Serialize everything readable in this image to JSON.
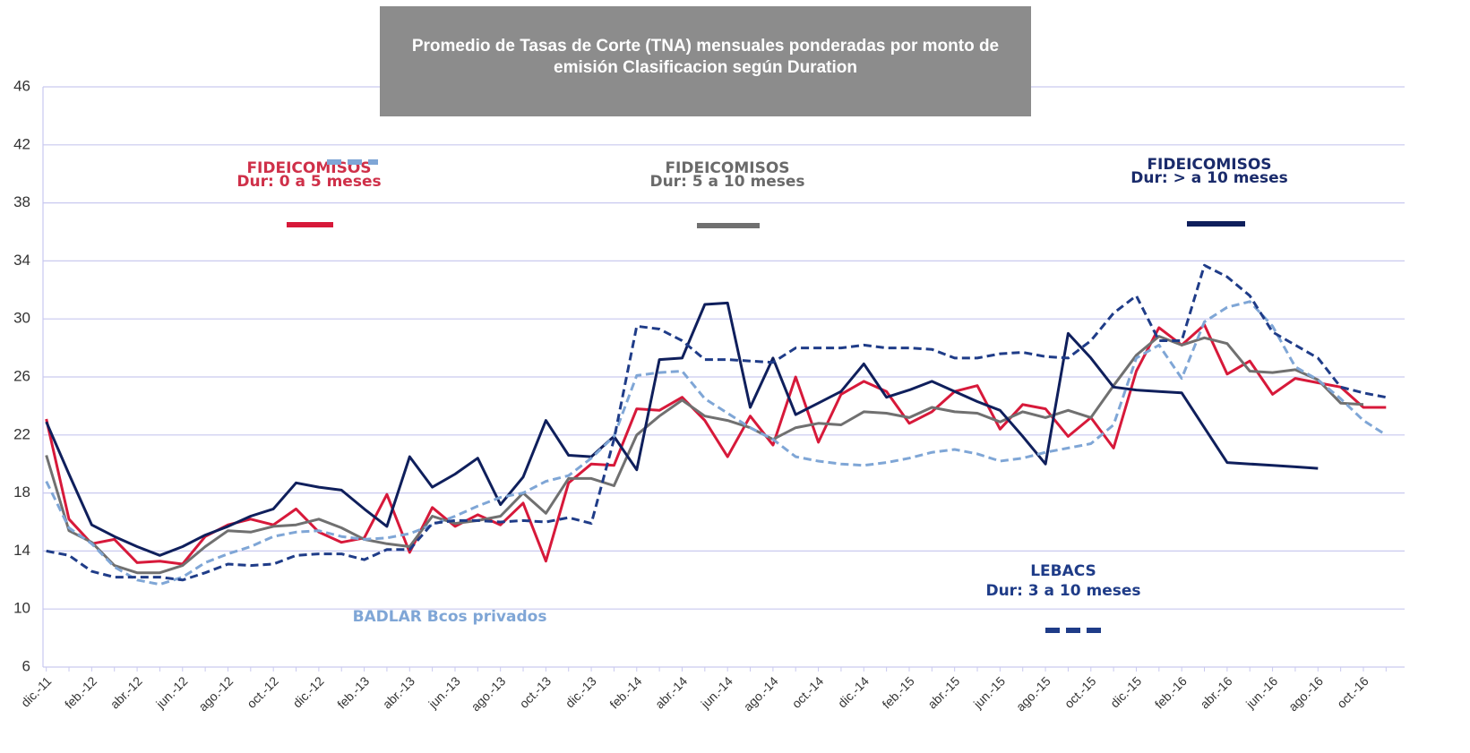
{
  "chart_data": {
    "type": "line",
    "title": "Promedio de Tasas de Corte (TNA) mensuales ponderadas por monto de emisión Clasificacion según Duration",
    "categories": [
      "dic.-11",
      null,
      "feb.-12",
      null,
      "abr.-12",
      null,
      "jun.-12",
      null,
      "ago.-12",
      null,
      "oct.-12",
      null,
      "dic.-12",
      null,
      "feb.-13",
      null,
      "abr.-13",
      null,
      "jun.-13",
      null,
      "ago.-13",
      null,
      "oct.-13",
      null,
      "dic.-13",
      null,
      "feb.-14",
      null,
      "abr.-14",
      null,
      "jun.-14",
      null,
      "ago.-14",
      null,
      "oct.-14",
      null,
      "dic.-14",
      null,
      "feb.-15",
      null,
      "abr.-15",
      null,
      "jun.-15",
      null,
      "ago.-15",
      null,
      "oct.-15",
      null,
      "dic.-15",
      null,
      "feb.-16",
      null,
      "abr.-16",
      null,
      "jun.-16",
      null,
      "ago.-16",
      null,
      "oct.-16",
      null
    ],
    "ylim": [
      6,
      46
    ],
    "yticks": [
      6,
      10,
      14,
      18,
      22,
      26,
      30,
      34,
      38,
      42,
      46
    ],
    "grid": true,
    "series": [
      {
        "name": [
          "FIDEICOMISOS",
          "Dur: 0 a 5 meses"
        ],
        "color": "#d7193a",
        "label_color": "#cf3049",
        "dashed": false,
        "values": [
          23.1,
          16.2,
          14.5,
          14.8,
          13.2,
          13.3,
          13.1,
          15,
          15.8,
          16.2,
          15.8,
          16.9,
          15.3,
          14.6,
          14.9,
          17.9,
          13.9,
          17,
          15.7,
          16.5,
          15.8,
          17.3,
          13.3,
          18.7,
          20,
          19.9,
          23.8,
          23.7,
          24.6,
          23,
          20.5,
          23.3,
          21.3,
          26,
          21.5,
          24.8,
          25.7,
          25,
          22.8,
          23.6,
          25,
          25.4,
          22.4,
          24.1,
          23.8,
          21.9,
          23.2,
          21.1,
          26.4,
          29.4,
          28.2,
          29.6,
          26.2,
          27.1,
          24.8,
          25.9,
          25.6,
          25.3,
          23.9,
          23.9
        ]
      },
      {
        "name": [
          "FIDEICOMISOS",
          "Dur: 5 a 10 meses"
        ],
        "color": "#707070",
        "label_color": "#6a6a6a",
        "dashed": false,
        "values": [
          20.6,
          15.4,
          14.6,
          13,
          12.5,
          12.5,
          13,
          14.3,
          15.4,
          15.3,
          15.7,
          15.8,
          16.2,
          15.6,
          14.8,
          14.5,
          14.3,
          16.4,
          15.9,
          16.1,
          16.4,
          18,
          16.6,
          19,
          19,
          18.5,
          22,
          23.3,
          24.4,
          23.3,
          23,
          22.5,
          21.7,
          22.5,
          22.8,
          22.7,
          23.6,
          23.5,
          23.2,
          23.9,
          23.6,
          23.5,
          22.9,
          23.6,
          23.2,
          23.7,
          23.2,
          25.4,
          27.5,
          28.8,
          28.2,
          28.7,
          28.3,
          26.4,
          26.3,
          26.5,
          25.8,
          24.2,
          24.1,
          null
        ]
      },
      {
        "name": [
          "FIDEICOMISOS",
          "Dur: > a 10 meses"
        ],
        "color": "#0f1f5c",
        "label_color": "#1a2b6b",
        "dashed": false,
        "values": [
          22.9,
          19.3,
          15.8,
          15,
          14.3,
          13.7,
          14.3,
          15.1,
          15.7,
          16.4,
          16.9,
          18.7,
          18.4,
          18.2,
          16.9,
          15.7,
          20.5,
          18.4,
          19.3,
          20.4,
          17.2,
          19.1,
          23,
          20.6,
          20.5,
          21.9,
          19.6,
          27.2,
          27.3,
          31,
          31.1,
          23.9,
          27.3,
          23.4,
          24.2,
          25,
          26.9,
          24.6,
          25.1,
          25.7,
          25,
          24.3,
          23.7,
          21.9,
          20,
          29,
          27.3,
          25.3,
          25.1,
          25,
          24.9,
          22.5,
          20.1,
          20,
          19.9,
          19.8,
          19.7,
          null,
          null,
          null
        ]
      },
      {
        "name": [
          "BADLAR Bcos privados"
        ],
        "color": "#7fa6d6",
        "label_color": "#7fa6d6",
        "dashed": true,
        "values": [
          18.8,
          15.6,
          14.5,
          12.9,
          12,
          11.7,
          12.2,
          13.2,
          13.8,
          14.3,
          15,
          15.3,
          15.4,
          15,
          14.8,
          14.9,
          15.2,
          15.8,
          16.4,
          17.1,
          17.7,
          18,
          18.8,
          19.2,
          20.4,
          21.9,
          26.1,
          26.3,
          26.4,
          24.5,
          23.5,
          22.5,
          21.7,
          20.5,
          20.2,
          20,
          19.9,
          20.1,
          20.4,
          20.8,
          21,
          20.7,
          20.2,
          20.4,
          20.8,
          21.1,
          21.4,
          22.7,
          27.3,
          28.2,
          25.9,
          29.8,
          30.8,
          31.2,
          29.5,
          26.7,
          25.8,
          24.5,
          23,
          22
        ]
      },
      {
        "name": [
          "LEBACS",
          "Dur: 3 a 10 meses"
        ],
        "color": "#1f3c88",
        "label_color": "#1f3c88",
        "dashed": true,
        "values": [
          14,
          13.7,
          12.6,
          12.2,
          12.2,
          12.2,
          12,
          12.5,
          13.1,
          13,
          13.1,
          13.7,
          13.8,
          13.8,
          13.4,
          14.1,
          14.1,
          15.9,
          16.1,
          16.1,
          16,
          16.1,
          16,
          16.3,
          15.9,
          21.7,
          29.5,
          29.3,
          28.5,
          27.2,
          27.2,
          27.1,
          27,
          28,
          28,
          28,
          28.2,
          28,
          28,
          27.9,
          27.3,
          27.3,
          27.6,
          27.7,
          27.4,
          27.3,
          28.5,
          30.4,
          31.6,
          28.5,
          28.5,
          33.7,
          32.9,
          31.6,
          29.1,
          28.2,
          27.3,
          25.3,
          24.9,
          24.6
        ]
      }
    ]
  }
}
